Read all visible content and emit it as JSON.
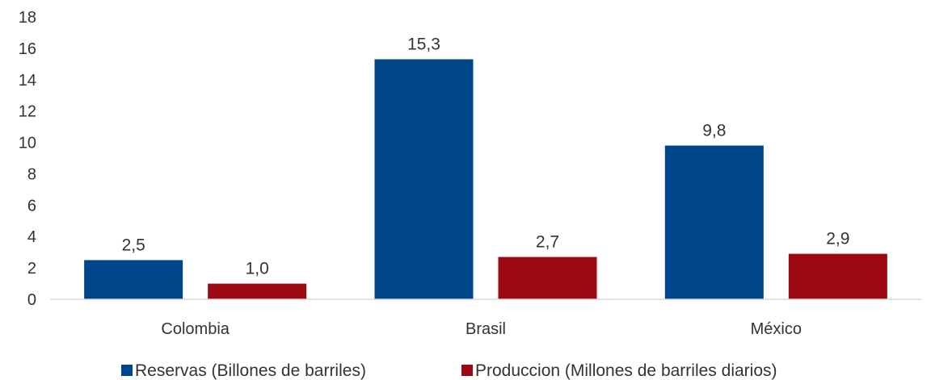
{
  "chart_data": {
    "type": "bar",
    "categories": [
      "Colombia",
      "Brasil",
      "México"
    ],
    "series": [
      {
        "name": "Reservas (Billones de barriles)",
        "values": [
          2.5,
          15.3,
          9.8
        ],
        "labels": [
          "2,5",
          "15,3",
          "9,8"
        ],
        "color": "#004489"
      },
      {
        "name": "Produccion (Millones de barriles diarios)",
        "values": [
          1.0,
          2.7,
          2.9
        ],
        "labels": [
          "1,0",
          "2,7",
          "2,9"
        ],
        "color": "#9b0a12"
      }
    ],
    "ylim": [
      0,
      18
    ],
    "yticks": [
      0,
      2,
      4,
      6,
      8,
      10,
      12,
      14,
      16,
      18
    ],
    "grid": false,
    "legend": "bottom"
  }
}
